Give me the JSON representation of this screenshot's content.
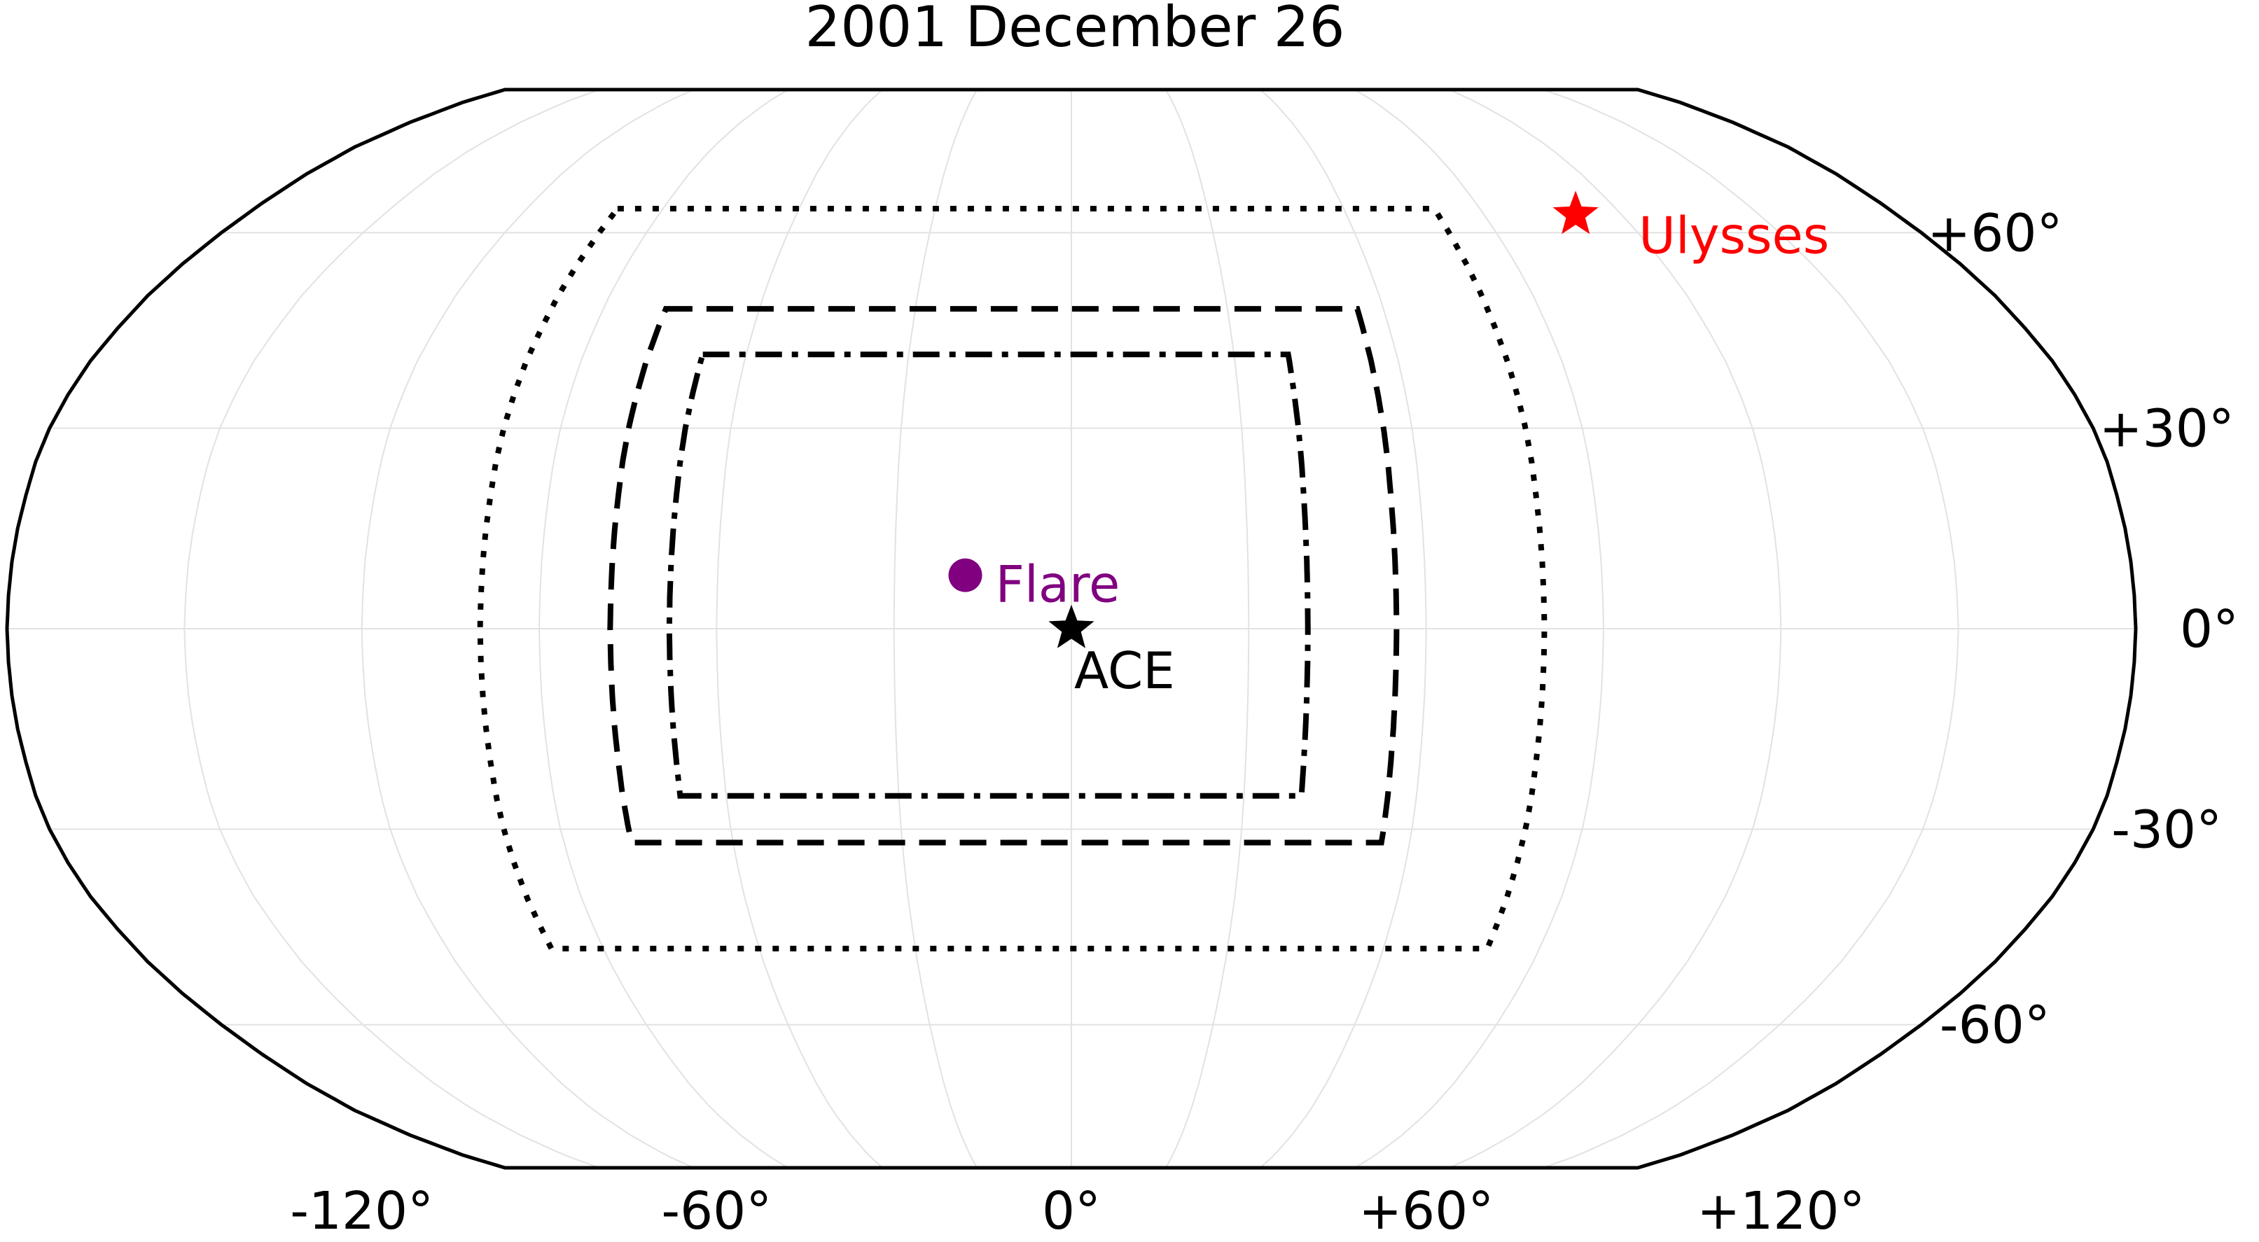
{
  "chart_data": {
    "type": "scatter",
    "projection": "robinson",
    "title": "2001 December 26",
    "grid": true,
    "x_ticks": [
      "-120°",
      "-60°",
      "0°",
      "+60°",
      "+120°"
    ],
    "x_tick_values": [
      -120,
      -60,
      0,
      60,
      120
    ],
    "y_ticks": [
      "+60°",
      "+30°",
      "0°",
      "-30°",
      "-60°"
    ],
    "y_tick_values": [
      60,
      30,
      0,
      -30,
      -60
    ],
    "meridians": [
      -150,
      -90,
      -30,
      30,
      90,
      150
    ],
    "parallels": [
      -60,
      -30,
      0,
      30,
      60
    ],
    "lon_range": [
      -180,
      180
    ],
    "lat_range": [
      -90,
      90
    ],
    "points": [
      {
        "name": "Ulysses",
        "lon": 110,
        "lat": 63,
        "marker": "star",
        "color": "#ff0000"
      },
      {
        "name": "Flare",
        "lon": -18,
        "lat": 8,
        "marker": "circle",
        "color": "#800080"
      },
      {
        "name": "ACE",
        "lon": 0,
        "lat": 0,
        "marker": "star",
        "color": "#000000"
      }
    ],
    "regions": [
      {
        "style": "dotted",
        "lon_range": [
          -100,
          80
        ],
        "lat_range": [
          -48,
          64
        ]
      },
      {
        "style": "dashed",
        "lon_range": [
          -78,
          55
        ],
        "lat_range": [
          -32,
          48
        ]
      },
      {
        "style": "dashdot",
        "lon_range": [
          -68,
          40
        ],
        "lat_range": [
          -25,
          41
        ]
      }
    ]
  }
}
